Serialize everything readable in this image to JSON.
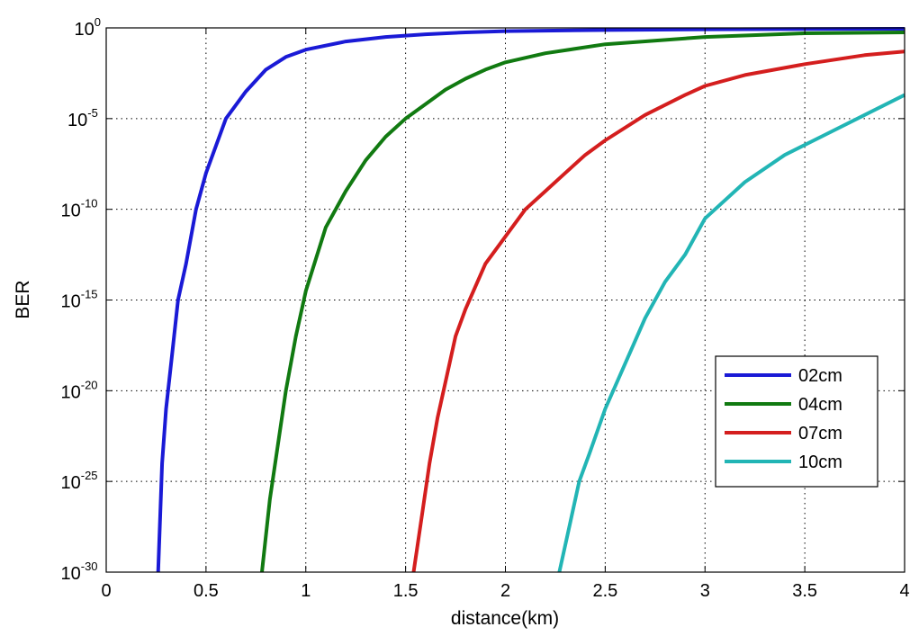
{
  "chart_data": {
    "type": "line",
    "title": "",
    "xlabel": "distance(km)",
    "ylabel": "BER",
    "xscale": "linear",
    "yscale": "log",
    "xlim": [
      0,
      4
    ],
    "ylim_exponent": [
      -30,
      0
    ],
    "grid": true,
    "legend_position": "lower-right",
    "x_ticks": [
      "0",
      "0.5",
      "1",
      "1.5",
      "2",
      "2.5",
      "3",
      "3.5",
      "4"
    ],
    "y_ticks": [
      {
        "base": "10",
        "exponent": "0"
      },
      {
        "base": "10",
        "exponent": "-5"
      },
      {
        "base": "10",
        "exponent": "-10"
      },
      {
        "base": "10",
        "exponent": "-15"
      },
      {
        "base": "10",
        "exponent": "-20"
      },
      {
        "base": "10",
        "exponent": "-25"
      },
      {
        "base": "10",
        "exponent": "-30"
      }
    ],
    "series": [
      {
        "name": "02cm",
        "color": "#1a1ad6",
        "points": [
          [
            0.26,
            -30
          ],
          [
            0.28,
            -24
          ],
          [
            0.3,
            -21
          ],
          [
            0.33,
            -18
          ],
          [
            0.36,
            -15
          ],
          [
            0.4,
            -13
          ],
          [
            0.45,
            -10
          ],
          [
            0.5,
            -8
          ],
          [
            0.6,
            -5
          ],
          [
            0.7,
            -3.5
          ],
          [
            0.8,
            -2.3
          ],
          [
            0.9,
            -1.6
          ],
          [
            1.0,
            -1.2
          ],
          [
            1.2,
            -0.75
          ],
          [
            1.4,
            -0.5
          ],
          [
            1.6,
            -0.35
          ],
          [
            1.8,
            -0.25
          ],
          [
            2.0,
            -0.18
          ],
          [
            2.5,
            -0.12
          ],
          [
            3.0,
            -0.08
          ],
          [
            3.5,
            -0.06
          ],
          [
            4.0,
            -0.05
          ]
        ]
      },
      {
        "name": "04cm",
        "color": "#117a11",
        "points": [
          [
            0.78,
            -30
          ],
          [
            0.82,
            -26
          ],
          [
            0.86,
            -23
          ],
          [
            0.9,
            -20
          ],
          [
            0.95,
            -17
          ],
          [
            1.0,
            -14.5
          ],
          [
            1.1,
            -11
          ],
          [
            1.2,
            -9
          ],
          [
            1.3,
            -7.3
          ],
          [
            1.4,
            -6
          ],
          [
            1.5,
            -5
          ],
          [
            1.6,
            -4.2
          ],
          [
            1.7,
            -3.4
          ],
          [
            1.8,
            -2.8
          ],
          [
            1.9,
            -2.3
          ],
          [
            2.0,
            -1.9
          ],
          [
            2.2,
            -1.4
          ],
          [
            2.5,
            -0.9
          ],
          [
            3.0,
            -0.5
          ],
          [
            3.5,
            -0.3
          ],
          [
            4.0,
            -0.25
          ]
        ]
      },
      {
        "name": "07cm",
        "color": "#d41e1e",
        "points": [
          [
            1.54,
            -30
          ],
          [
            1.58,
            -27
          ],
          [
            1.62,
            -24
          ],
          [
            1.66,
            -21.5
          ],
          [
            1.7,
            -19.5
          ],
          [
            1.75,
            -17
          ],
          [
            1.8,
            -15.5
          ],
          [
            1.9,
            -13
          ],
          [
            2.0,
            -11.5
          ],
          [
            2.1,
            -10
          ],
          [
            2.2,
            -9
          ],
          [
            2.3,
            -8
          ],
          [
            2.4,
            -7
          ],
          [
            2.5,
            -6.2
          ],
          [
            2.7,
            -4.8
          ],
          [
            2.9,
            -3.7
          ],
          [
            3.0,
            -3.2
          ],
          [
            3.2,
            -2.6
          ],
          [
            3.5,
            -2
          ],
          [
            3.8,
            -1.5
          ],
          [
            4.0,
            -1.3
          ]
        ]
      },
      {
        "name": "10cm",
        "color": "#22b5b5",
        "points": [
          [
            2.27,
            -30
          ],
          [
            2.32,
            -27.5
          ],
          [
            2.37,
            -25
          ],
          [
            2.42,
            -23.5
          ],
          [
            2.5,
            -21
          ],
          [
            2.6,
            -18.5
          ],
          [
            2.7,
            -16
          ],
          [
            2.8,
            -14
          ],
          [
            2.9,
            -12.5
          ],
          [
            3.0,
            -10.5
          ],
          [
            3.2,
            -8.5
          ],
          [
            3.4,
            -7
          ],
          [
            3.6,
            -5.9
          ],
          [
            3.8,
            -4.8
          ],
          [
            4.0,
            -3.7
          ]
        ]
      }
    ]
  }
}
